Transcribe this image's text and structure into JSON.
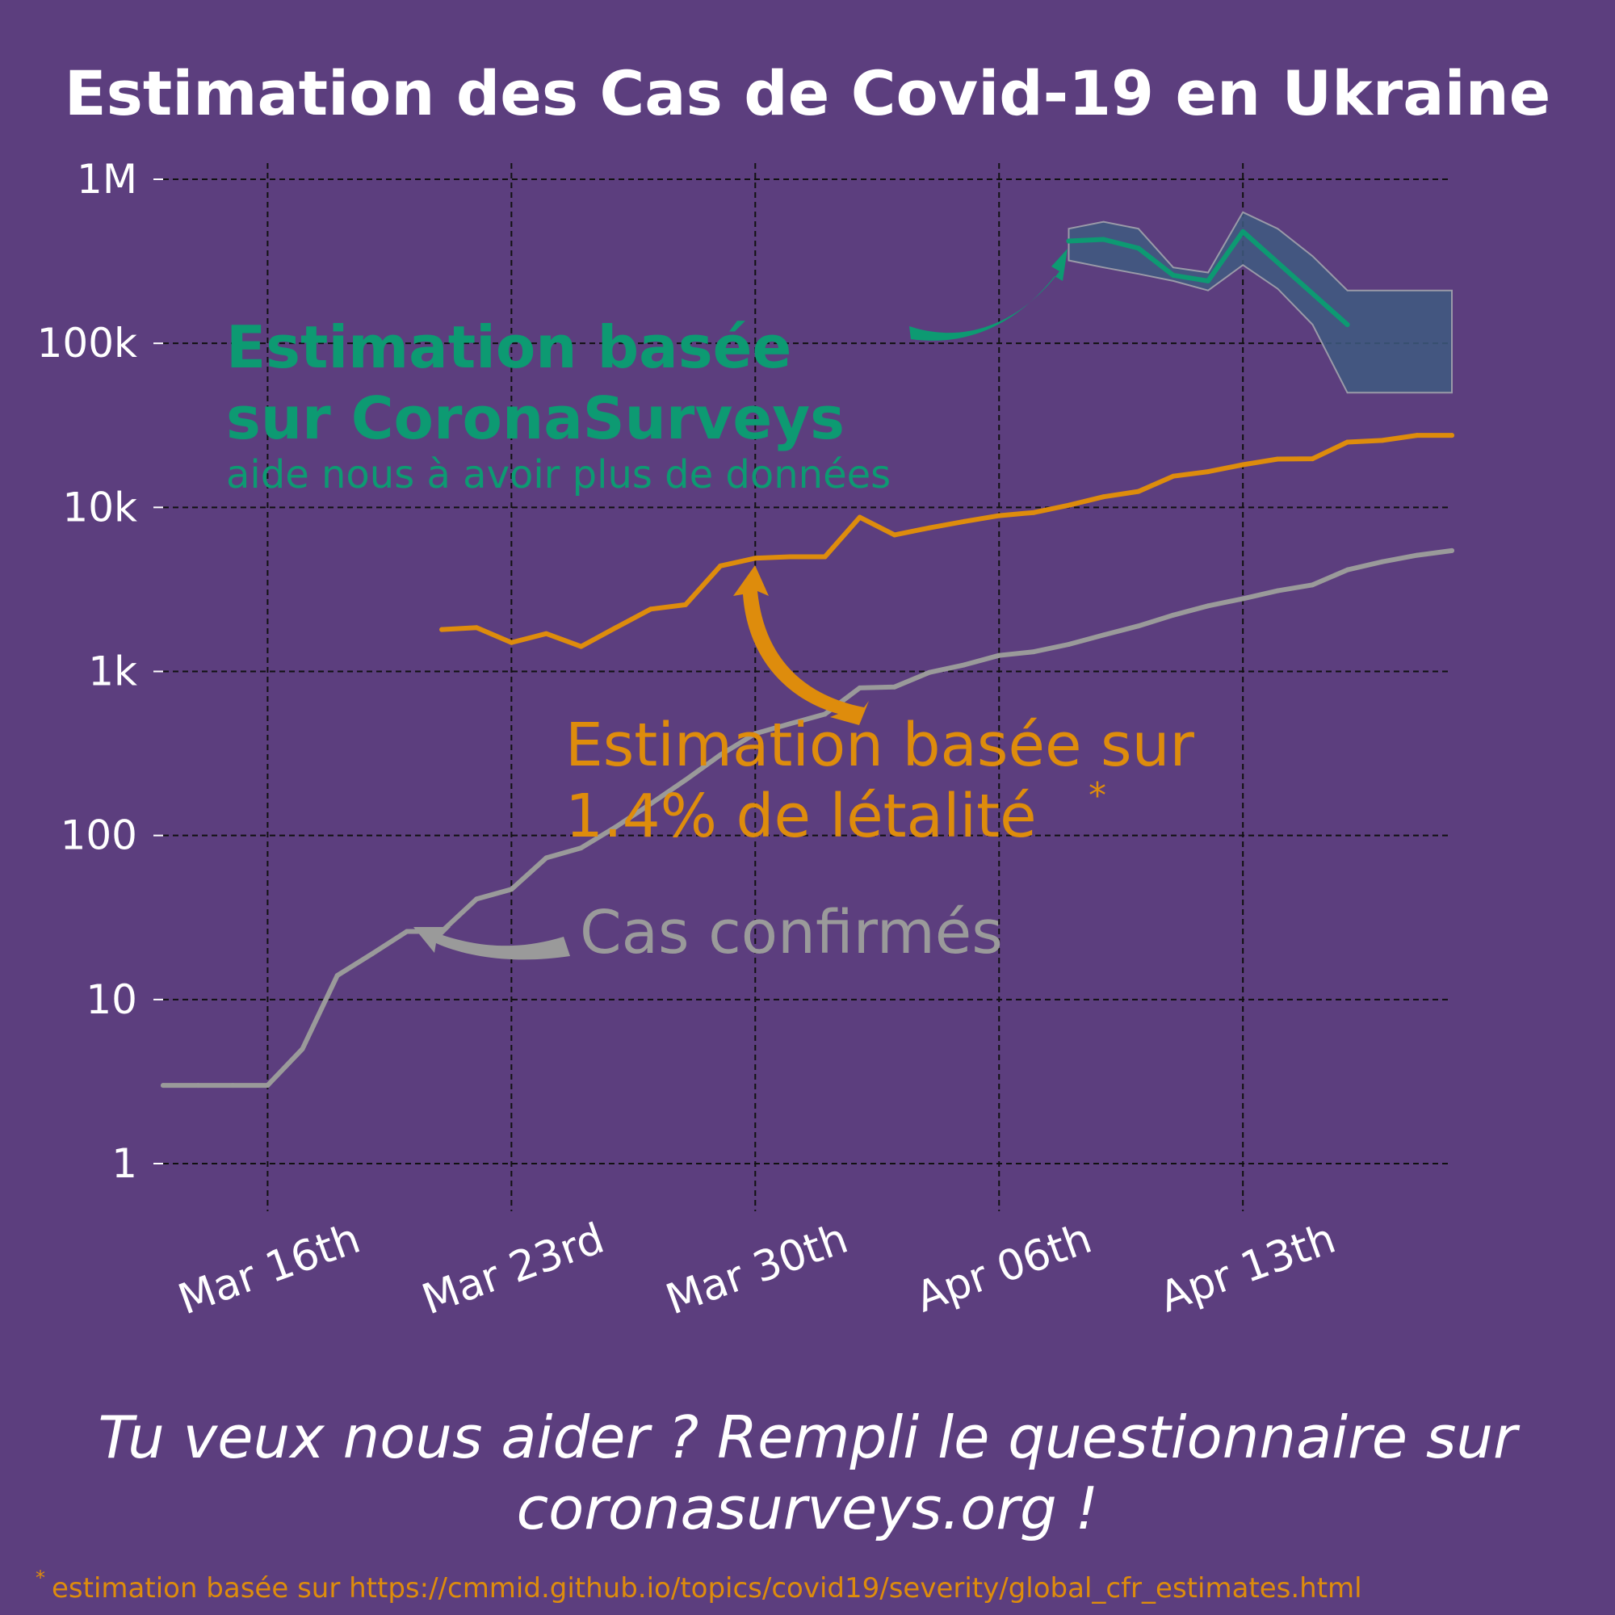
{
  "title": "Estimation des Cas de Covid-19 en Ukraine",
  "colors": {
    "background": "#5c3e7e",
    "white": "#ffffff",
    "green": "#0d9a72",
    "orange": "#de8c0c",
    "grey": "#9a9a9a",
    "band_fill": "#3e5a80",
    "grid": "#111111"
  },
  "annotations": {
    "coronasurveys_line1": "Estimation basée",
    "coronasurveys_line2": "sur CoronaSurveys",
    "coronasurveys_sub": "aide nous à avoir plus de données",
    "cfr_line1": "Estimation basée sur",
    "cfr_line2": "1.4% de létalité",
    "cfr_star": "*",
    "confirmed": "Cas confirmés"
  },
  "footer": {
    "cta_line1": "Tu veux nous aider ? Rempli le questionnaire sur",
    "cta_line2": "coronasurveys.org !",
    "footnote_star": "*",
    "footnote": "estimation basée sur https://cmmid.github.io/topics/covid19/severity/global_cfr_estimates.html"
  },
  "chart_data": {
    "type": "line",
    "title": "Estimation des Cas de Covid-19 en Ukraine",
    "y_scale": "log",
    "ylim": [
      1,
      1000000
    ],
    "y_ticks": [
      {
        "value": 1,
        "label": "1"
      },
      {
        "value": 10,
        "label": "10"
      },
      {
        "value": 100,
        "label": "100"
      },
      {
        "value": 1000,
        "label": "1k"
      },
      {
        "value": 10000,
        "label": "10k"
      },
      {
        "value": 100000,
        "label": "100k"
      },
      {
        "value": 1000000,
        "label": "1M"
      }
    ],
    "xlim": [
      "2020-03-13",
      "2020-04-19"
    ],
    "x_ticks": [
      {
        "value": "2020-03-16",
        "label": "Mar 16th"
      },
      {
        "value": "2020-03-23",
        "label": "Mar 23rd"
      },
      {
        "value": "2020-03-30",
        "label": "Mar 30th"
      },
      {
        "value": "2020-04-06",
        "label": "Apr 06th"
      },
      {
        "value": "2020-04-13",
        "label": "Apr 13th"
      }
    ],
    "grid": true,
    "series": [
      {
        "name": "Cas confirmés",
        "color": "#9a9a9a",
        "points": [
          [
            "2020-03-13",
            3
          ],
          [
            "2020-03-14",
            3
          ],
          [
            "2020-03-15",
            3
          ],
          [
            "2020-03-16",
            3
          ],
          [
            "2020-03-17",
            5
          ],
          [
            "2020-03-18",
            14
          ],
          [
            "2020-03-19",
            19
          ],
          [
            "2020-03-20",
            26
          ],
          [
            "2020-03-21",
            26
          ],
          [
            "2020-03-22",
            41
          ],
          [
            "2020-03-23",
            47
          ],
          [
            "2020-03-24",
            73
          ],
          [
            "2020-03-25",
            84
          ],
          [
            "2020-03-26",
            113
          ],
          [
            "2020-03-27",
            156
          ],
          [
            "2020-03-28",
            218
          ],
          [
            "2020-03-29",
            310
          ],
          [
            "2020-03-30",
            418
          ],
          [
            "2020-03-31",
            480
          ],
          [
            "2020-04-01",
            549
          ],
          [
            "2020-04-02",
            794
          ],
          [
            "2020-04-03",
            804
          ],
          [
            "2020-04-04",
            987
          ],
          [
            "2020-04-05",
            1096
          ],
          [
            "2020-04-06",
            1251
          ],
          [
            "2020-04-07",
            1319
          ],
          [
            "2020-04-08",
            1462
          ],
          [
            "2020-04-09",
            1668
          ],
          [
            "2020-04-10",
            1892
          ],
          [
            "2020-04-11",
            2203
          ],
          [
            "2020-04-12",
            2511
          ],
          [
            "2020-04-13",
            2777
          ],
          [
            "2020-04-14",
            3102
          ],
          [
            "2020-04-15",
            3372
          ],
          [
            "2020-04-16",
            4161
          ],
          [
            "2020-04-17",
            4662
          ],
          [
            "2020-04-18",
            5106
          ],
          [
            "2020-04-19",
            5449
          ]
        ]
      },
      {
        "name": "Estimation basée sur 1.4% de létalité",
        "color": "#de8c0c",
        "points": [
          [
            "2020-03-21",
            1800
          ],
          [
            "2020-03-22",
            1850
          ],
          [
            "2020-03-23",
            1500
          ],
          [
            "2020-03-24",
            1700
          ],
          [
            "2020-03-25",
            1420
          ],
          [
            "2020-03-26",
            1850
          ],
          [
            "2020-03-27",
            2400
          ],
          [
            "2020-03-28",
            2550
          ],
          [
            "2020-03-29",
            4400
          ],
          [
            "2020-03-30",
            4900
          ],
          [
            "2020-03-31",
            5000
          ],
          [
            "2020-04-01",
            5000
          ],
          [
            "2020-04-02",
            8700
          ],
          [
            "2020-04-03",
            6800
          ],
          [
            "2020-04-04",
            7500
          ],
          [
            "2020-04-05",
            8200
          ],
          [
            "2020-04-06",
            8900
          ],
          [
            "2020-04-07",
            9300
          ],
          [
            "2020-04-08",
            10300
          ],
          [
            "2020-04-09",
            11600
          ],
          [
            "2020-04-10",
            12500
          ],
          [
            "2020-04-11",
            15500
          ],
          [
            "2020-04-12",
            16500
          ],
          [
            "2020-04-13",
            18200
          ],
          [
            "2020-04-14",
            19700
          ],
          [
            "2020-04-15",
            19800
          ],
          [
            "2020-04-16",
            25000
          ],
          [
            "2020-04-17",
            25600
          ],
          [
            "2020-04-18",
            27500
          ],
          [
            "2020-04-19",
            27500
          ]
        ]
      },
      {
        "name": "Estimation basée sur CoronaSurveys",
        "color": "#0d9a72",
        "points": [
          [
            "2020-04-08",
            420000
          ],
          [
            "2020-04-09",
            430000
          ],
          [
            "2020-04-10",
            380000
          ],
          [
            "2020-04-11",
            260000
          ],
          [
            "2020-04-12",
            240000
          ],
          [
            "2020-04-13",
            480000
          ],
          [
            "2020-04-16",
            130000
          ]
        ],
        "band": {
          "upper": [
            [
              "2020-04-08",
              500000
            ],
            [
              "2020-04-09",
              550000
            ],
            [
              "2020-04-10",
              500000
            ],
            [
              "2020-04-11",
              290000
            ],
            [
              "2020-04-12",
              270000
            ],
            [
              "2020-04-13",
              630000
            ],
            [
              "2020-04-14",
              500000
            ],
            [
              "2020-04-15",
              340000
            ],
            [
              "2020-04-16",
              210000
            ],
            [
              "2020-04-19",
              210000
            ]
          ],
          "lower": [
            [
              "2020-04-08",
              320000
            ],
            [
              "2020-04-09",
              290000
            ],
            [
              "2020-04-10",
              265000
            ],
            [
              "2020-04-11",
              240000
            ],
            [
              "2020-04-12",
              210000
            ],
            [
              "2020-04-13",
              300000
            ],
            [
              "2020-04-14",
              215000
            ],
            [
              "2020-04-15",
              130000
            ],
            [
              "2020-04-16",
              50000
            ],
            [
              "2020-04-19",
              50000
            ]
          ]
        }
      }
    ]
  }
}
